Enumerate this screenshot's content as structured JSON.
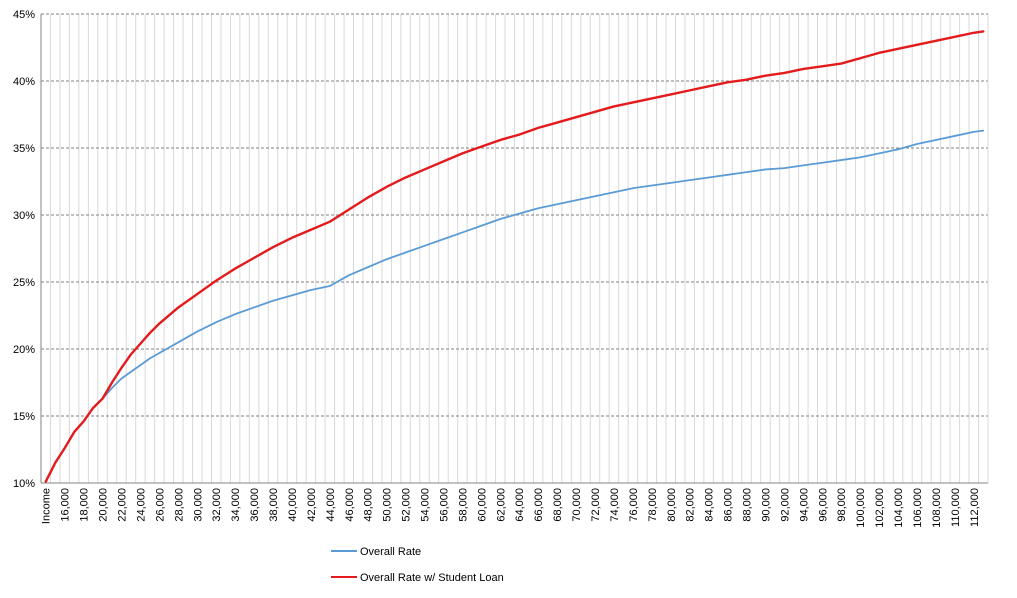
{
  "chart_data": {
    "type": "line",
    "title": "",
    "xlabel": "",
    "ylabel": "",
    "x_first_label": "Income",
    "x_start": 14000,
    "x_step": 1000,
    "x_end": 113000,
    "x_tick_labels": [
      "Income",
      "16,000",
      "18,000",
      "20,000",
      "22,000",
      "24,000",
      "26,000",
      "28,000",
      "30,000",
      "32,000",
      "34,000",
      "36,000",
      "38,000",
      "40,000",
      "42,000",
      "44,000",
      "46,000",
      "48,000",
      "50,000",
      "52,000",
      "54,000",
      "56,000",
      "58,000",
      "60,000",
      "62,000",
      "64,000",
      "66,000",
      "68,000",
      "70,000",
      "72,000",
      "74,000",
      "76,000",
      "78,000",
      "80,000",
      "82,000",
      "84,000",
      "86,000",
      "88,000",
      "90,000",
      "92,000",
      "94,000",
      "96,000",
      "98,000",
      "100,000",
      "102,000",
      "104,000",
      "106,000",
      "108,000",
      "110,000",
      "112,000"
    ],
    "y_tick_labels": [
      "10%",
      "15%",
      "20%",
      "25%",
      "30%",
      "35%",
      "40%",
      "45%"
    ],
    "ylim": [
      10,
      45
    ],
    "grid": true,
    "legend_position": "bottom",
    "series": [
      {
        "name": "Overall Rate",
        "color": "#5b9bd5",
        "points": [
          [
            14000,
            10.1
          ],
          [
            15000,
            11.5
          ],
          [
            16000,
            12.6
          ],
          [
            17000,
            13.8
          ],
          [
            18000,
            14.6
          ],
          [
            19000,
            15.6
          ],
          [
            20000,
            16.3
          ],
          [
            21000,
            17.1
          ],
          [
            22000,
            17.8
          ],
          [
            23000,
            18.3
          ],
          [
            24000,
            18.8
          ],
          [
            25000,
            19.3
          ],
          [
            26000,
            19.7
          ],
          [
            28000,
            20.5
          ],
          [
            30000,
            21.3
          ],
          [
            32000,
            22.0
          ],
          [
            34000,
            22.6
          ],
          [
            36000,
            23.1
          ],
          [
            38000,
            23.6
          ],
          [
            40000,
            24.0
          ],
          [
            42000,
            24.4
          ],
          [
            44000,
            24.7
          ],
          [
            46000,
            25.5
          ],
          [
            48000,
            26.1
          ],
          [
            50000,
            26.7
          ],
          [
            52000,
            27.2
          ],
          [
            54000,
            27.7
          ],
          [
            56000,
            28.2
          ],
          [
            58000,
            28.7
          ],
          [
            60000,
            29.2
          ],
          [
            62000,
            29.7
          ],
          [
            64000,
            30.1
          ],
          [
            66000,
            30.5
          ],
          [
            68000,
            30.8
          ],
          [
            70000,
            31.1
          ],
          [
            72000,
            31.4
          ],
          [
            74000,
            31.7
          ],
          [
            76000,
            32.0
          ],
          [
            78000,
            32.2
          ],
          [
            80000,
            32.4
          ],
          [
            82000,
            32.6
          ],
          [
            84000,
            32.8
          ],
          [
            86000,
            33.0
          ],
          [
            88000,
            33.2
          ],
          [
            90000,
            33.4
          ],
          [
            92000,
            33.5
          ],
          [
            94000,
            33.7
          ],
          [
            96000,
            33.9
          ],
          [
            98000,
            34.1
          ],
          [
            100000,
            34.3
          ],
          [
            102000,
            34.6
          ],
          [
            104000,
            34.9
          ],
          [
            106000,
            35.3
          ],
          [
            108000,
            35.6
          ],
          [
            110000,
            35.9
          ],
          [
            112000,
            36.2
          ],
          [
            113000,
            36.3
          ]
        ]
      },
      {
        "name": "Overall Rate w/ Student Loan",
        "color": "#e41a1c",
        "points": [
          [
            14000,
            10.1
          ],
          [
            15000,
            11.5
          ],
          [
            16000,
            12.6
          ],
          [
            17000,
            13.8
          ],
          [
            18000,
            14.6
          ],
          [
            19000,
            15.6
          ],
          [
            20000,
            16.3
          ],
          [
            21000,
            17.5
          ],
          [
            22000,
            18.6
          ],
          [
            23000,
            19.6
          ],
          [
            24000,
            20.4
          ],
          [
            25000,
            21.2
          ],
          [
            26000,
            21.9
          ],
          [
            28000,
            23.1
          ],
          [
            30000,
            24.1
          ],
          [
            32000,
            25.1
          ],
          [
            34000,
            26.0
          ],
          [
            36000,
            26.8
          ],
          [
            38000,
            27.6
          ],
          [
            40000,
            28.3
          ],
          [
            42000,
            28.9
          ],
          [
            44000,
            29.5
          ],
          [
            46000,
            30.4
          ],
          [
            48000,
            31.3
          ],
          [
            50000,
            32.1
          ],
          [
            52000,
            32.8
          ],
          [
            54000,
            33.4
          ],
          [
            56000,
            34.0
          ],
          [
            58000,
            34.6
          ],
          [
            60000,
            35.1
          ],
          [
            62000,
            35.6
          ],
          [
            64000,
            36.0
          ],
          [
            66000,
            36.5
          ],
          [
            68000,
            36.9
          ],
          [
            70000,
            37.3
          ],
          [
            72000,
            37.7
          ],
          [
            74000,
            38.1
          ],
          [
            76000,
            38.4
          ],
          [
            78000,
            38.7
          ],
          [
            80000,
            39.0
          ],
          [
            82000,
            39.3
          ],
          [
            84000,
            39.6
          ],
          [
            86000,
            39.9
          ],
          [
            88000,
            40.1
          ],
          [
            90000,
            40.4
          ],
          [
            92000,
            40.6
          ],
          [
            94000,
            40.9
          ],
          [
            96000,
            41.1
          ],
          [
            98000,
            41.3
          ],
          [
            100000,
            41.7
          ],
          [
            102000,
            42.1
          ],
          [
            104000,
            42.4
          ],
          [
            106000,
            42.7
          ],
          [
            108000,
            43.0
          ],
          [
            110000,
            43.3
          ],
          [
            112000,
            43.6
          ],
          [
            113000,
            43.7
          ]
        ]
      }
    ]
  }
}
